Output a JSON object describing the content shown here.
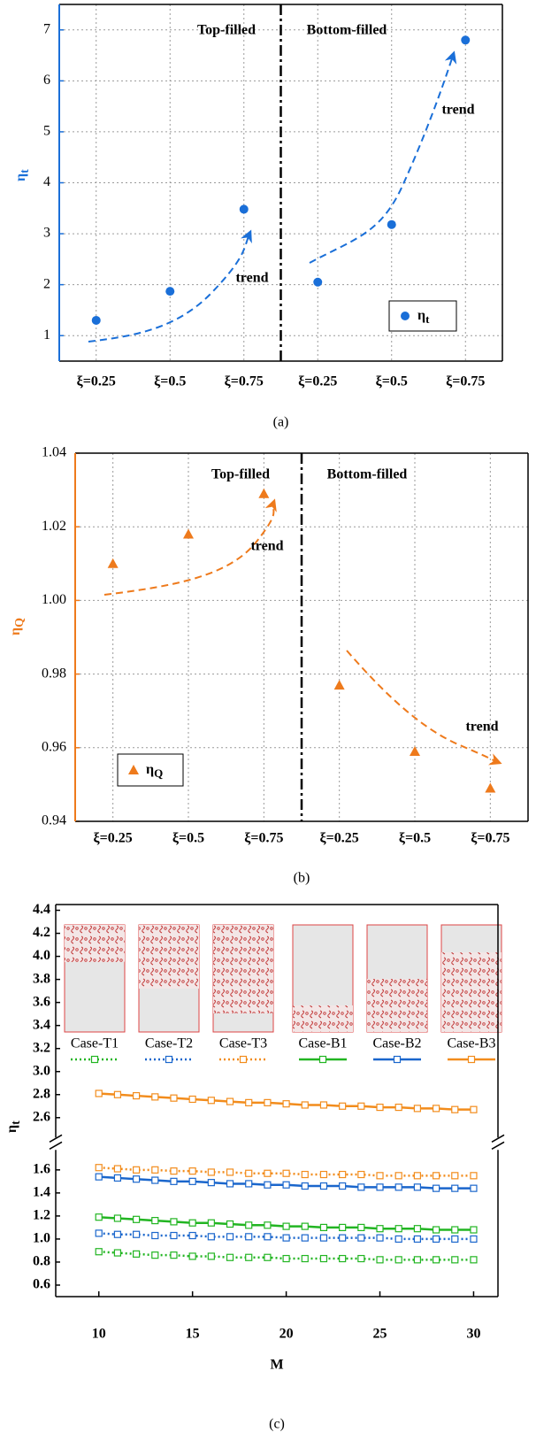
{
  "chart_data": [
    {
      "type": "scatter",
      "caption": "(a)",
      "ylabel": "η",
      "ylabel_sub": "t",
      "categories": [
        "ξ=0.25",
        "ξ=0.5",
        "ξ=0.75",
        "ξ=0.25",
        "ξ=0.5",
        "ξ=0.75"
      ],
      "series": [
        {
          "name": "η",
          "name_sub": "t",
          "color": "#1a6fd8",
          "marker": "circle",
          "values": [
            1.3,
            1.87,
            3.48,
            2.05,
            3.18,
            6.8
          ]
        }
      ],
      "ylim": [
        0.5,
        7.5
      ],
      "yticks": [
        1,
        2,
        3,
        4,
        5,
        6,
        7
      ],
      "grid": true,
      "annotations": [
        "Top-filled",
        "Bottom-filled",
        "trend",
        "trend"
      ],
      "legend": "lower right"
    },
    {
      "type": "scatter",
      "caption": "(b)",
      "ylabel": "η",
      "ylabel_sub": "Q",
      "categories": [
        "ξ=0.25",
        "ξ=0.5",
        "ξ=0.75",
        "ξ=0.25",
        "ξ=0.5",
        "ξ=0.75"
      ],
      "series": [
        {
          "name": "η",
          "name_sub": "Q",
          "color": "#ee7a1c",
          "marker": "triangle",
          "values": [
            1.01,
            1.018,
            1.029,
            0.977,
            0.959,
            0.949
          ]
        }
      ],
      "ylim": [
        0.94,
        1.04
      ],
      "yticks": [
        0.94,
        0.96,
        0.98,
        {
          "value": 1,
          "label": "1.00"
        },
        1.02,
        1.04
      ],
      "grid": true,
      "annotations": [
        "Top-filled",
        "Bottom-filled",
        "trend",
        "trend"
      ],
      "legend": "lower left"
    },
    {
      "type": "line",
      "caption": "(c)",
      "xlabel": "M",
      "ylabel": "η",
      "ylabel_sub": "t",
      "x": [
        10,
        11,
        12,
        13,
        14,
        15,
        16,
        17,
        18,
        19,
        20,
        21,
        22,
        23,
        24,
        25,
        26,
        27,
        28,
        29,
        30
      ],
      "xlim": [
        7.7,
        31.3
      ],
      "xticks": [
        10,
        15,
        20,
        25,
        30
      ],
      "ylim": [
        0.5,
        4.45
      ],
      "y_break": [
        1.7,
        2.5
      ],
      "yticks": [
        0.6,
        0.8,
        {
          "value": 1,
          "label": "1.0"
        },
        1.2,
        1.4,
        1.6,
        2.6,
        2.8,
        {
          "value": 3,
          "label": "3.0"
        },
        3.2,
        3.4,
        3.6,
        3.8,
        {
          "value": 4,
          "label": "4.0"
        },
        4.2,
        4.4
      ],
      "grid": false,
      "legend": "top",
      "series": [
        {
          "name": "Case-T1",
          "color": "#22b522",
          "linestyle": "dotted",
          "values": [
            0.89,
            0.88,
            0.87,
            0.86,
            0.86,
            0.85,
            0.85,
            0.84,
            0.84,
            0.84,
            0.83,
            0.83,
            0.83,
            0.83,
            0.83,
            0.82,
            0.82,
            0.82,
            0.82,
            0.82,
            0.82
          ]
        },
        {
          "name": "Case-T2",
          "color": "#1a66cc",
          "linestyle": "dotted",
          "values": [
            1.05,
            1.04,
            1.04,
            1.03,
            1.03,
            1.03,
            1.02,
            1.02,
            1.02,
            1.02,
            1.01,
            1.01,
            1.01,
            1.01,
            1.01,
            1.01,
            1.0,
            1.0,
            1.0,
            1.0,
            1.0
          ]
        },
        {
          "name": "Case-T3",
          "color": "#f28c1c",
          "linestyle": "dotted",
          "values": [
            1.62,
            1.61,
            1.6,
            1.6,
            1.59,
            1.59,
            1.58,
            1.58,
            1.57,
            1.57,
            1.57,
            1.56,
            1.56,
            1.56,
            1.56,
            1.55,
            1.55,
            1.55,
            1.55,
            1.55,
            1.55
          ]
        },
        {
          "name": "Case-B1",
          "color": "#22b522",
          "linestyle": "solid",
          "values": [
            1.19,
            1.18,
            1.17,
            1.16,
            1.15,
            1.14,
            1.14,
            1.13,
            1.12,
            1.12,
            1.11,
            1.11,
            1.1,
            1.1,
            1.1,
            1.09,
            1.09,
            1.09,
            1.08,
            1.08,
            1.08
          ]
        },
        {
          "name": "Case-B2",
          "color": "#1a66cc",
          "linestyle": "solid",
          "values": [
            1.54,
            1.53,
            1.52,
            1.51,
            1.5,
            1.5,
            1.49,
            1.48,
            1.48,
            1.47,
            1.47,
            1.46,
            1.46,
            1.46,
            1.45,
            1.45,
            1.45,
            1.45,
            1.44,
            1.44,
            1.44
          ]
        },
        {
          "name": "Case-B3",
          "color": "#f28c1c",
          "linestyle": "solid",
          "values": [
            2.81,
            2.8,
            2.79,
            2.78,
            2.77,
            2.76,
            2.75,
            2.74,
            2.73,
            2.73,
            2.72,
            2.71,
            2.71,
            2.7,
            2.7,
            2.69,
            2.69,
            2.68,
            2.68,
            2.67,
            2.67
          ]
        }
      ]
    }
  ]
}
